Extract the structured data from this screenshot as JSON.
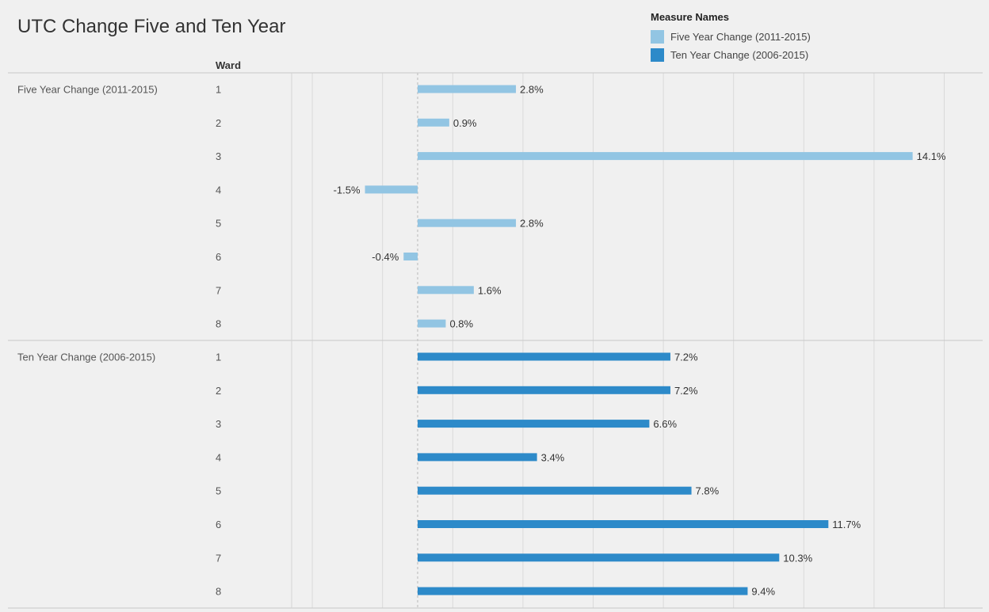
{
  "chart_data": {
    "type": "bar",
    "title": "UTC Change Five and Ten Year",
    "row_header": "Ward",
    "legend_title": "Measure Names",
    "legend_position": "top-right",
    "grid": true,
    "xlim": [
      -9,
      16
    ],
    "series": [
      {
        "name": "Five Year Change (2011-2015)",
        "color": "#92c5e3",
        "categories": [
          "1",
          "2",
          "3",
          "4",
          "5",
          "6",
          "7",
          "8"
        ],
        "values": [
          2.8,
          0.9,
          14.1,
          -1.5,
          2.8,
          -0.4,
          1.6,
          0.8
        ],
        "labels": [
          "2.8%",
          "0.9%",
          "14.1%",
          "-1.5%",
          "2.8%",
          "-0.4%",
          "1.6%",
          "0.8%"
        ]
      },
      {
        "name": "Ten Year Change (2006-2015)",
        "color": "#2d8ac9",
        "categories": [
          "1",
          "2",
          "3",
          "4",
          "5",
          "6",
          "7",
          "8"
        ],
        "values": [
          7.2,
          7.2,
          6.6,
          3.4,
          7.8,
          11.7,
          10.3,
          9.4
        ],
        "labels": [
          "7.2%",
          "7.2%",
          "6.6%",
          "3.4%",
          "7.8%",
          "11.7%",
          "10.3%",
          "9.4%"
        ]
      }
    ]
  }
}
